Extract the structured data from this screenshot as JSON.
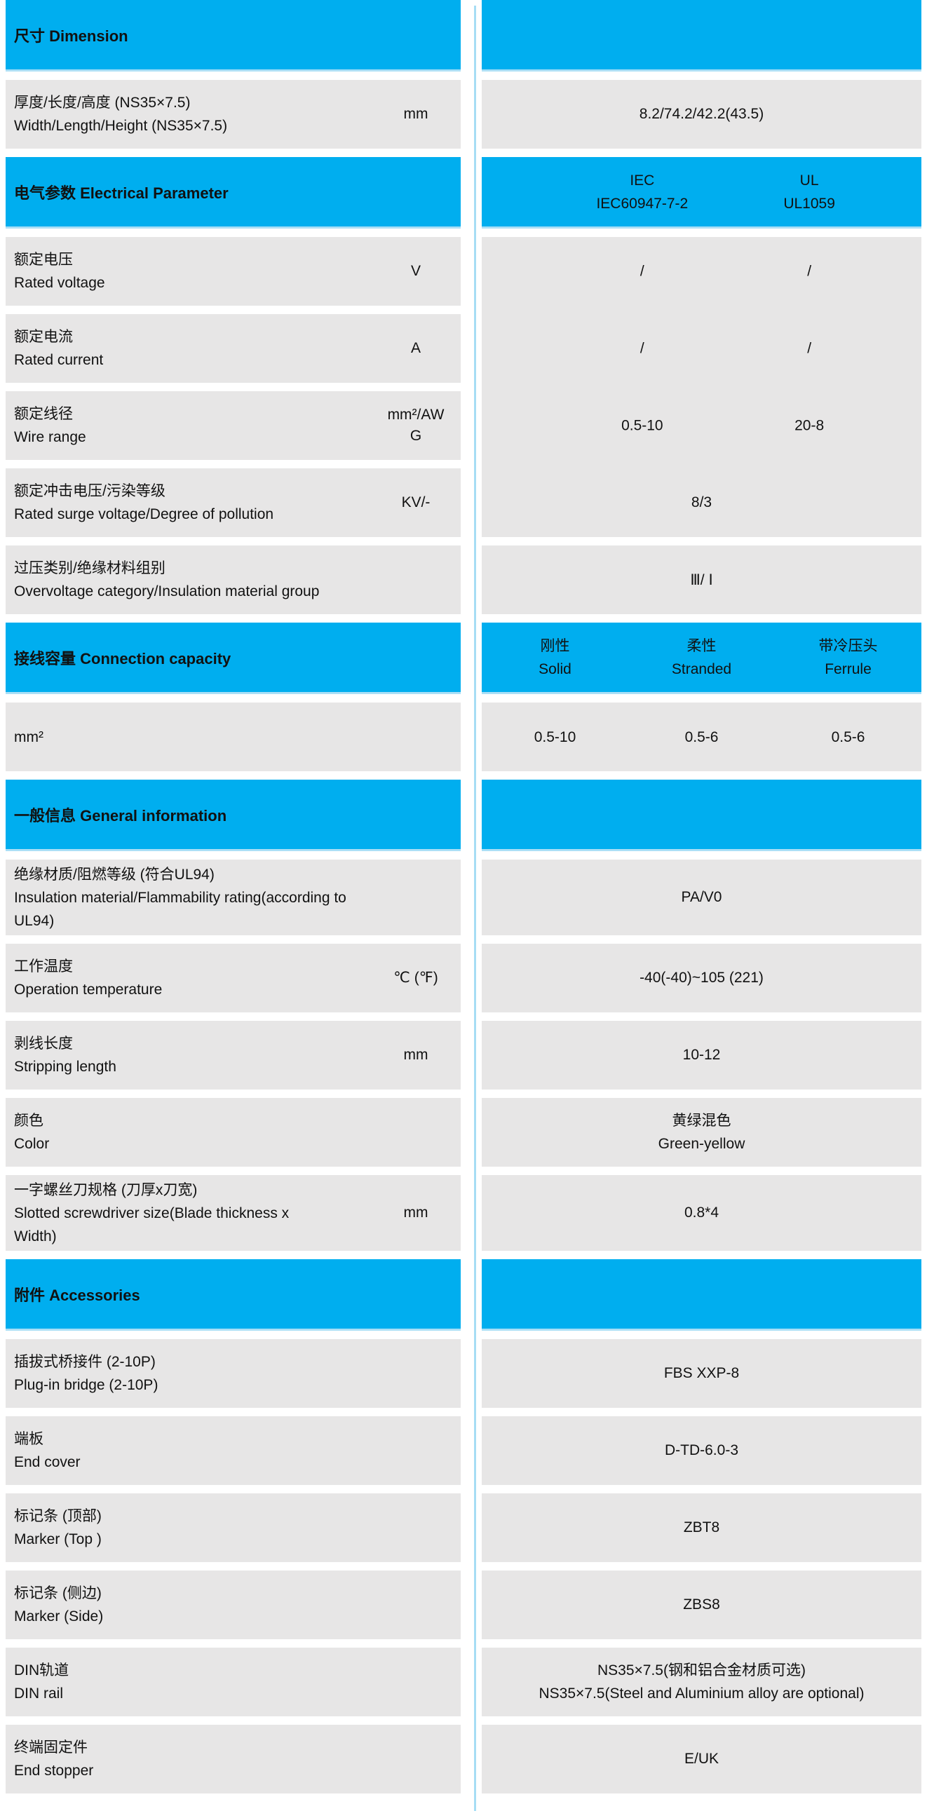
{
  "colors": {
    "header_blue": "#00AEEF",
    "row_gray": "#E7E6E6",
    "divider_light_blue": "#A6DDF4",
    "header_border_light_blue": "#ABDFF6",
    "text": "#111111"
  },
  "headers": {
    "dimension": "尺寸 Dimension",
    "electrical": "电气参数 Electrical Parameter",
    "connection": "接线容量 Connection capacity",
    "general": "一般信息 General information",
    "accessories": "附件 Accessories"
  },
  "electrical_columns": {
    "iec_line1": "IEC",
    "iec_line2": "IEC60947-7-2",
    "ul_line1": "UL",
    "ul_line2": "UL1059"
  },
  "connection_columns": {
    "solid_zh": "刚性",
    "solid_en": "Solid",
    "stranded_zh": "柔性",
    "stranded_en": "Stranded",
    "ferrule_zh": "带冷压头",
    "ferrule_en": "Ferrule"
  },
  "rows": {
    "size": {
      "zh": "厚度/长度/高度 (NS35×7.5)",
      "en": "Width/Length/Height (NS35×7.5)",
      "unit": "mm",
      "value": "8.2/74.2/42.2(43.5)"
    },
    "rated_voltage": {
      "zh": "额定电压",
      "en": "Rated voltage",
      "unit": "V",
      "value_iec": "/",
      "value_ul": "/"
    },
    "rated_current": {
      "zh": "额定电流",
      "en": "Rated current",
      "unit": "A",
      "value_iec": "/",
      "value_ul": "/"
    },
    "wire_range": {
      "zh": "额定线径",
      "en": "Wire range",
      "unit": "mm²/AWG",
      "value_iec": "0.5-10",
      "value_ul": "20-8"
    },
    "surge": {
      "zh": "额定冲击电压/污染等级",
      "en": "Rated surge voltage/Degree of pollution",
      "unit": "KV/-",
      "value": "8/3"
    },
    "overvoltage": {
      "zh": "过压类别/绝缘材料组别",
      "en": "Overvoltage category/Insulation material group",
      "value": "Ⅲ/ Ⅰ"
    },
    "capacity": {
      "label": "mm²",
      "solid": "0.5-10",
      "stranded": "0.5-6",
      "ferrule": "0.5-6"
    },
    "insulation": {
      "zh": "绝缘材质/阻燃等级 (符合UL94)",
      "en": "Insulation material/Flammability rating(according to UL94)",
      "value": "PA/V0"
    },
    "temperature": {
      "zh": "工作温度",
      "en": "Operation temperature",
      "unit": "℃ (℉)",
      "value": "-40(-40)~105 (221)"
    },
    "stripping": {
      "zh": "剥线长度",
      "en": "Stripping length",
      "unit": "mm",
      "value": "10-12"
    },
    "color": {
      "zh": "颜色",
      "en": "Color",
      "value_zh": "黄绿混色",
      "value_en": "Green-yellow"
    },
    "screwdriver": {
      "zh": "一字螺丝刀规格 (刀厚x刀宽)",
      "en": "Slotted screwdriver size(Blade thickness x Width)",
      "unit": "mm",
      "value": "0.8*4"
    },
    "bridge": {
      "zh": "插拔式桥接件 (2-10P)",
      "en": "Plug-in bridge (2-10P)",
      "value": "FBS XXP-8"
    },
    "end_cover": {
      "zh": "端板",
      "en": "End cover",
      "value": "D-TD-6.0-3"
    },
    "marker_top": {
      "zh": "标记条 (顶部)",
      "en": "Marker (Top )",
      "value": "ZBT8"
    },
    "marker_side": {
      "zh": "标记条 (侧边)",
      "en": "Marker (Side)",
      "value": "ZBS8"
    },
    "din_rail": {
      "zh": "DIN轨道",
      "en": "DIN rail",
      "value_zh": "NS35×7.5(钢和铝合金材质可选)",
      "value_en": "NS35×7.5(Steel and Aluminium alloy are optional)"
    },
    "end_stopper": {
      "zh": "终端固定件",
      "en": "End stopper",
      "value": "E/UK"
    }
  }
}
